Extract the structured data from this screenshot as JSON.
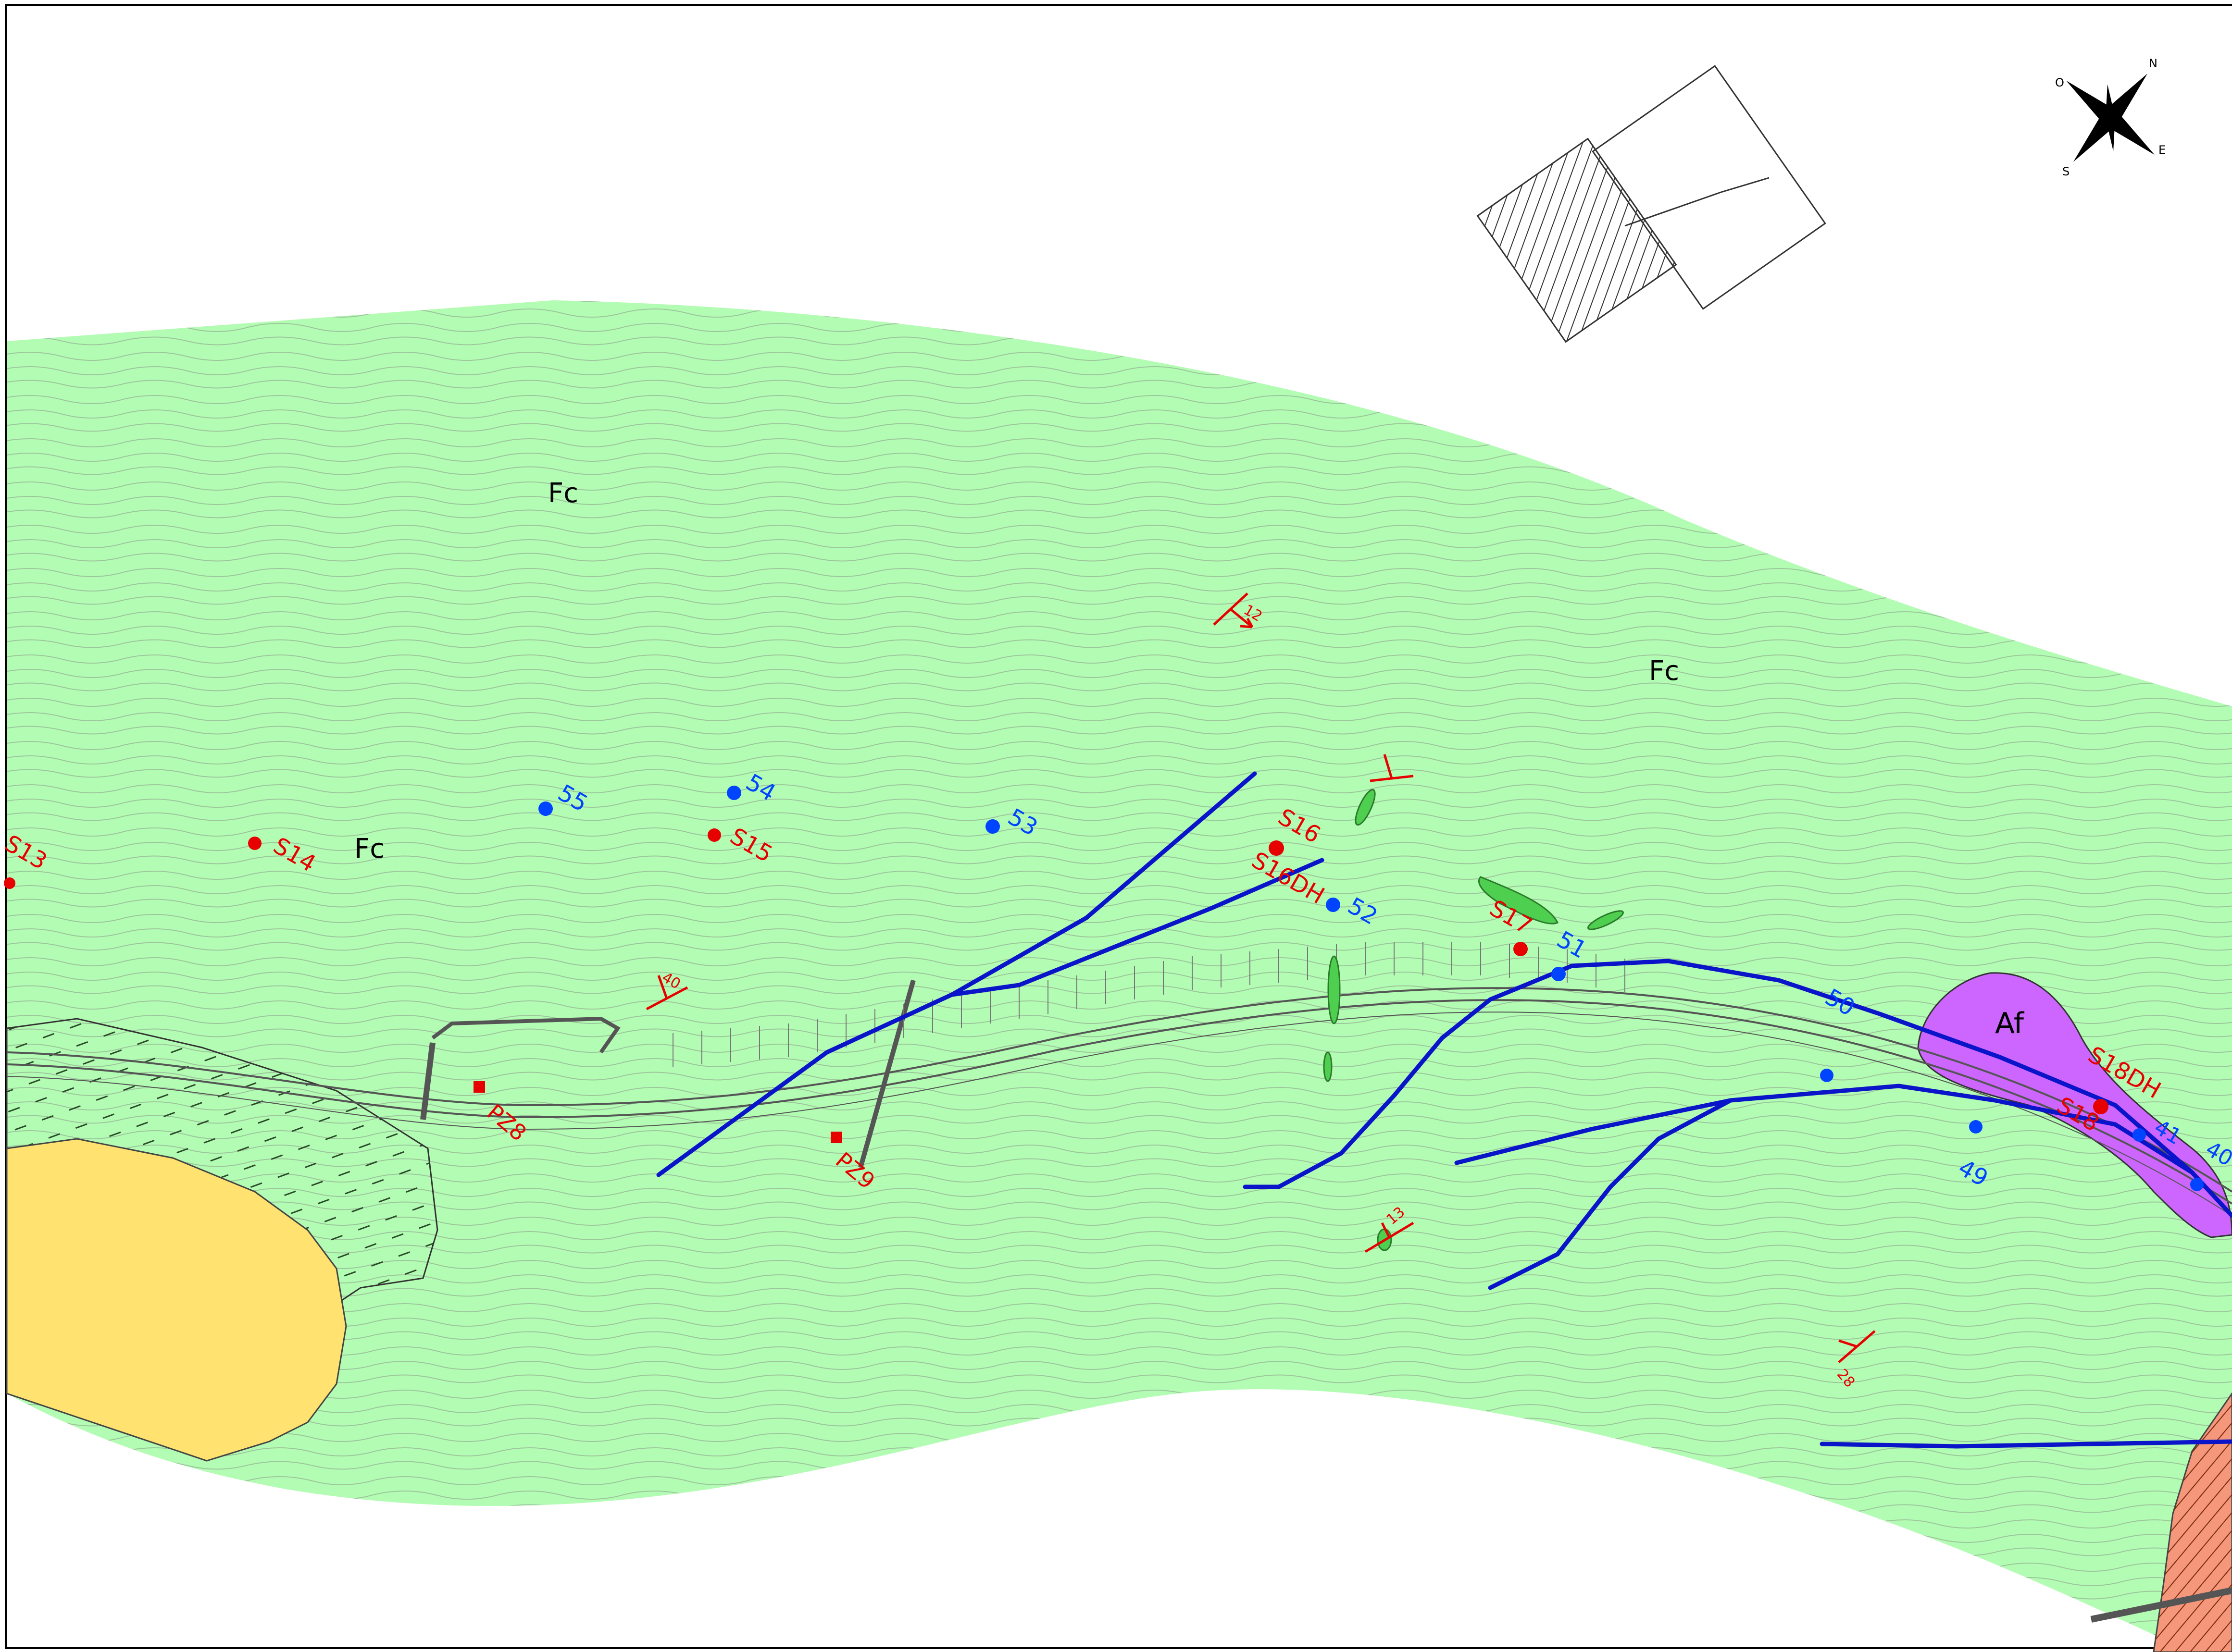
{
  "map": {
    "colors": {
      "fc_unit": "#b3fcb3",
      "af_unit": "#cc66ff",
      "yellow_unit": "#ffe26f",
      "salmon_unit": "#f4977a",
      "fault": "#0a14c8",
      "survey_red": "#e60000",
      "survey_blue": "#0044ff",
      "contour": "#8c9c8c"
    },
    "unit_labels": [
      {
        "id": "fc1",
        "text": "Fc"
      },
      {
        "id": "fc2",
        "text": "Fc"
      },
      {
        "id": "fc3",
        "text": "Fc"
      },
      {
        "id": "af",
        "text": "Af"
      }
    ],
    "boreholes_red": [
      {
        "id": "s13",
        "text": "S13"
      },
      {
        "id": "s14",
        "text": "S14"
      },
      {
        "id": "s15",
        "text": "S15"
      },
      {
        "id": "s16",
        "text": "S16"
      },
      {
        "id": "s16dh",
        "text": "S16DH"
      },
      {
        "id": "s17",
        "text": "S17"
      },
      {
        "id": "s18dh",
        "text": "S18DH"
      },
      {
        "id": "s18",
        "text": "S18"
      }
    ],
    "piezometers": [
      {
        "id": "pz8",
        "text": "PZ8"
      },
      {
        "id": "pz9",
        "text": "PZ9"
      }
    ],
    "stations_blue": [
      {
        "id": "b55",
        "text": "55"
      },
      {
        "id": "b54",
        "text": "54"
      },
      {
        "id": "b53",
        "text": "53"
      },
      {
        "id": "b52",
        "text": "52"
      },
      {
        "id": "b51",
        "text": "51"
      },
      {
        "id": "b50",
        "text": "50"
      },
      {
        "id": "b49",
        "text": "49"
      },
      {
        "id": "b41",
        "text": "41"
      },
      {
        "id": "b40",
        "text": "40"
      }
    ],
    "dip_symbols": [
      {
        "id": "d12",
        "text": "12"
      },
      {
        "id": "d40",
        "text": "40"
      },
      {
        "id": "d13",
        "text": "13"
      },
      {
        "id": "d28",
        "text": "28"
      }
    ],
    "compass": {
      "n": "N",
      "e": "E",
      "s": "S",
      "o": "O"
    }
  }
}
